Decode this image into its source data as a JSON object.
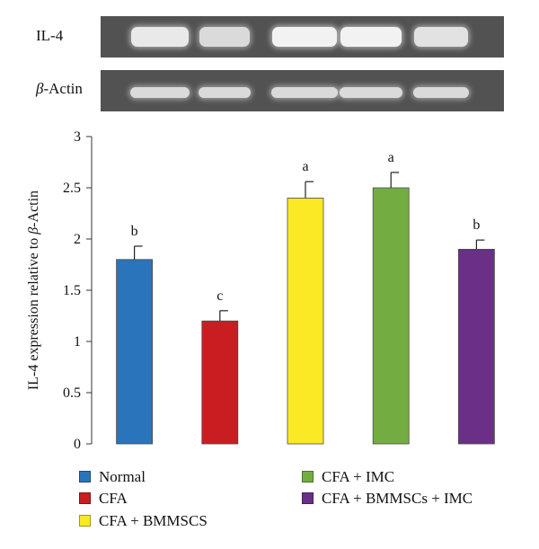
{
  "blot": {
    "rows": [
      {
        "label_prefix": "",
        "label_main": "IL-4",
        "band_intensity": [
          0.95,
          0.85,
          1.0,
          1.0,
          0.9
        ]
      },
      {
        "label_prefix": "β",
        "label_main": "-Actin",
        "band_intensity": [
          0.85,
          0.85,
          0.85,
          0.85,
          0.85
        ]
      }
    ]
  },
  "chart_data": {
    "type": "bar",
    "categories": [
      "Normal",
      "CFA",
      "CFA + BMMSCS",
      "CFA + IMC",
      "CFA + BMMSCs + IMC"
    ],
    "values": [
      1.8,
      1.2,
      2.4,
      2.5,
      1.9
    ],
    "errors": [
      0.13,
      0.1,
      0.16,
      0.15,
      0.09
    ],
    "significance_letters": [
      "b",
      "c",
      "a",
      "a",
      "b"
    ],
    "colors": [
      "#2a74bb",
      "#c81e22",
      "#fbe925",
      "#73ad42",
      "#6a2f87"
    ],
    "ylabel_prefix": "IL-4 expression relative to ",
    "ylabel_greek": "β",
    "ylabel_suffix": "-Actin",
    "ylim": [
      0,
      3
    ],
    "yticks": [
      0,
      0.5,
      1,
      1.5,
      2,
      2.5,
      3
    ],
    "ytick_labels": [
      "0",
      "0.5",
      "1",
      "1.5",
      "2",
      "2.5",
      "3"
    ],
    "legend": [
      "Normal",
      "CFA",
      "CFA + BMMSCS",
      "CFA + IMC",
      "CFA + BMMSCs + IMC"
    ],
    "grid": false
  }
}
